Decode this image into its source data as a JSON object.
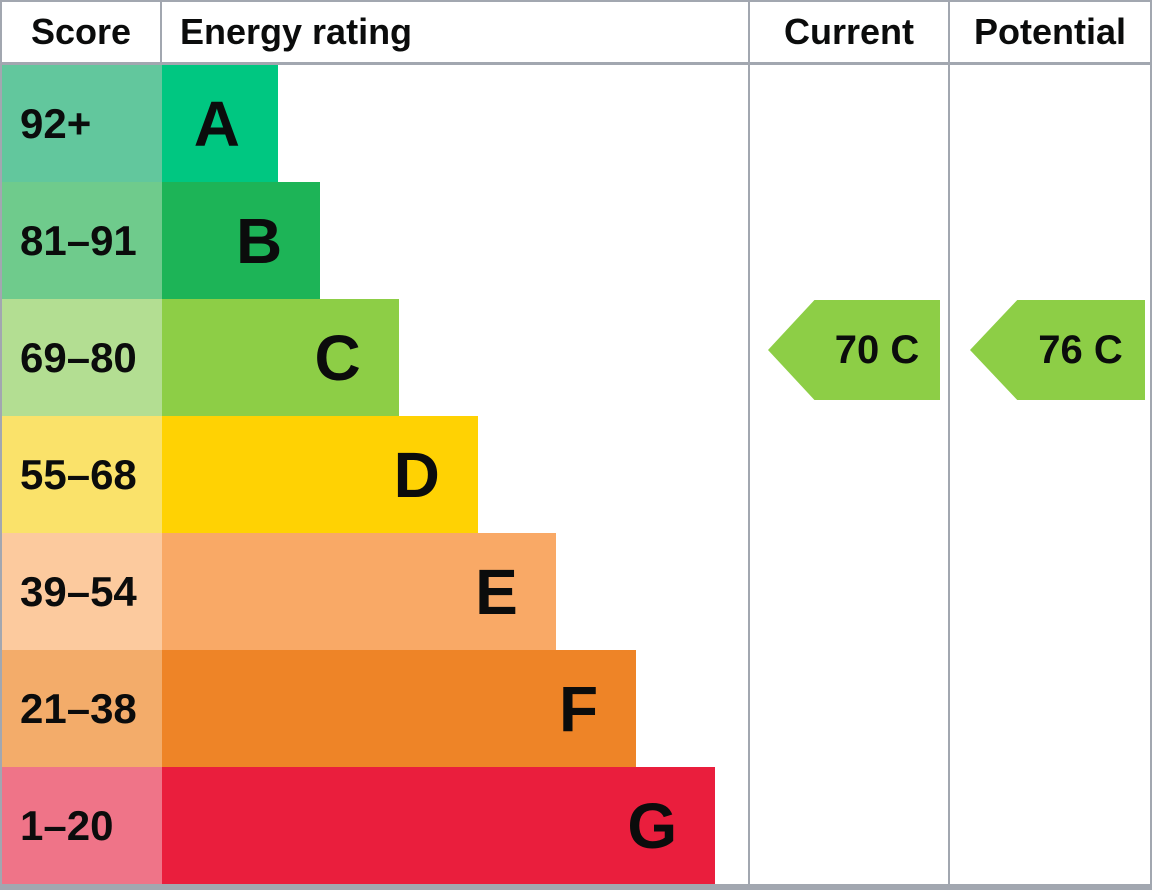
{
  "header": {
    "score": "Score",
    "energy_rating": "Energy rating",
    "current": "Current",
    "potential": "Potential"
  },
  "bands": [
    {
      "letter": "A",
      "score_range": "92+",
      "bar_color": "#00c781",
      "score_bg": "#62c79d",
      "bar_width_pct": 19.8
    },
    {
      "letter": "B",
      "score_range": "81–91",
      "bar_color": "#1db457",
      "score_bg": "#6fcb8c",
      "bar_width_pct": 27.0
    },
    {
      "letter": "C",
      "score_range": "69–80",
      "bar_color": "#8dce46",
      "score_bg": "#b3de92",
      "bar_width_pct": 40.4
    },
    {
      "letter": "D",
      "score_range": "55–68",
      "bar_color": "#ffd203",
      "score_bg": "#fae26a",
      "bar_width_pct": 53.9
    },
    {
      "letter": "E",
      "score_range": "39–54",
      "bar_color": "#f9a966",
      "score_bg": "#fcca9e",
      "bar_width_pct": 67.2
    },
    {
      "letter": "F",
      "score_range": "21–38",
      "bar_color": "#ee8427",
      "score_bg": "#f3ac6a",
      "bar_width_pct": 80.9
    },
    {
      "letter": "G",
      "score_range": "1–20",
      "bar_color": "#ea1e3d",
      "score_bg": "#ef7488",
      "bar_width_pct": 94.4
    }
  ],
  "ratings": {
    "current": {
      "label": "70 C",
      "value": 70,
      "band": "C",
      "arrow_color": "#8dce46"
    },
    "potential": {
      "label": "76 C",
      "value": 76,
      "band": "C",
      "arrow_color": "#8dce46"
    }
  },
  "colors": {
    "border": "#a2a7b0",
    "background": "#ffffff",
    "text": "#0b0c0c"
  },
  "chart_data": {
    "type": "bar",
    "title": "EPC energy efficiency rating chart",
    "categories": [
      "A",
      "B",
      "C",
      "D",
      "E",
      "F",
      "G"
    ],
    "score_ranges": [
      "92+",
      "81–91",
      "69–80",
      "55–68",
      "39–54",
      "21–38",
      "1–20"
    ],
    "bar_width_pct": [
      19.8,
      27.0,
      40.4,
      53.9,
      67.2,
      80.9,
      94.4
    ],
    "band_colors": [
      "#00c781",
      "#1db457",
      "#8dce46",
      "#ffd203",
      "#f9a966",
      "#ee8427",
      "#ea1e3d"
    ],
    "columns": [
      "Score",
      "Energy rating",
      "Current",
      "Potential"
    ],
    "current": {
      "score": 70,
      "band": "C"
    },
    "potential": {
      "score": 76,
      "band": "C"
    },
    "legend_position": "none",
    "grid": false
  }
}
